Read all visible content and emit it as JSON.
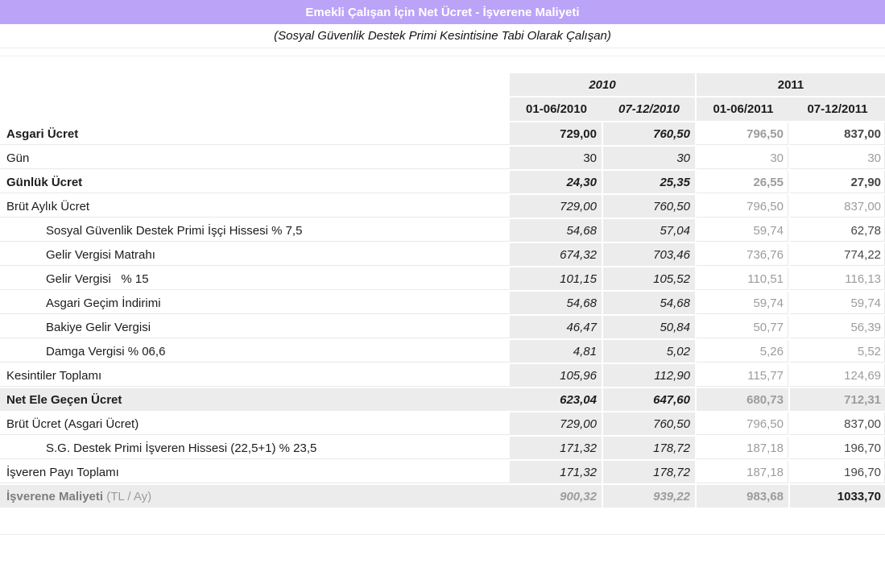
{
  "header": {
    "title": "Emekli Çalışan İçin Net Ücret - İşverene Maliyeti",
    "subtitle": "(Sosyal Güvenlik Destek Primi Kesintisine Tabi Olarak Çalışan)",
    "title_bg_color": "#bba3f8",
    "title_text_color": "#ffffff"
  },
  "table": {
    "year_groups": [
      {
        "label": "2010"
      },
      {
        "label": "2011"
      }
    ],
    "periods": [
      {
        "label": "01-06/2010"
      },
      {
        "label": "07-12/2010"
      },
      {
        "label": "01-06/2011"
      },
      {
        "label": "07-12/2011"
      }
    ],
    "rows": [
      {
        "label": "Asgari Ücret",
        "label_bold": true,
        "values": [
          {
            "text": "729,00",
            "bold": true,
            "tone": "black"
          },
          {
            "text": "760,50",
            "bold": true,
            "italic": true,
            "tone": "black"
          },
          {
            "text": "796,50",
            "bold": true,
            "tone": "gray"
          },
          {
            "text": "837,00",
            "bold": true,
            "tone": "dark"
          }
        ]
      },
      {
        "label": "Gün",
        "values": [
          {
            "text": "30",
            "tone": "black"
          },
          {
            "text": "30",
            "italic": true,
            "tone": "black"
          },
          {
            "text": "30",
            "tone": "gray"
          },
          {
            "text": "30",
            "tone": "gray"
          }
        ]
      },
      {
        "label": "Günlük Ücret",
        "label_bold": true,
        "values": [
          {
            "text": "24,30",
            "bold": true,
            "italic": true,
            "tone": "black"
          },
          {
            "text": "25,35",
            "bold": true,
            "italic": true,
            "tone": "black"
          },
          {
            "text": "26,55",
            "bold": true,
            "tone": "gray"
          },
          {
            "text": "27,90",
            "bold": true,
            "tone": "dark"
          }
        ]
      },
      {
        "label": "Brüt Aylık Ücret",
        "values": [
          {
            "text": "729,00",
            "italic": true,
            "tone": "black"
          },
          {
            "text": "760,50",
            "italic": true,
            "tone": "black"
          },
          {
            "text": "796,50",
            "tone": "gray"
          },
          {
            "text": "837,00",
            "tone": "gray"
          }
        ]
      },
      {
        "label": "Sosyal Güvenlik Destek Primi İşçi Hissesi % 7,5",
        "indent": true,
        "values": [
          {
            "text": "54,68",
            "italic": true,
            "tone": "black"
          },
          {
            "text": "57,04",
            "italic": true,
            "tone": "black"
          },
          {
            "text": "59,74",
            "tone": "gray"
          },
          {
            "text": "62,78",
            "tone": "dark"
          }
        ]
      },
      {
        "label": "Gelir Vergisi Matrahı",
        "indent": true,
        "values": [
          {
            "text": "674,32",
            "italic": true,
            "tone": "black"
          },
          {
            "text": "703,46",
            "italic": true,
            "tone": "black"
          },
          {
            "text": "736,76",
            "tone": "gray"
          },
          {
            "text": "774,22",
            "tone": "dark"
          }
        ]
      },
      {
        "label": "Gelir Vergisi   % 15",
        "indent": true,
        "values": [
          {
            "text": "101,15",
            "italic": true,
            "tone": "black"
          },
          {
            "text": "105,52",
            "italic": true,
            "tone": "black"
          },
          {
            "text": "110,51",
            "tone": "gray"
          },
          {
            "text": "116,13",
            "tone": "gray"
          }
        ]
      },
      {
        "label": "Asgari Geçim İndirimi",
        "indent": true,
        "values": [
          {
            "text": "54,68",
            "italic": true,
            "tone": "black"
          },
          {
            "text": "54,68",
            "italic": true,
            "tone": "black"
          },
          {
            "text": "59,74",
            "tone": "gray"
          },
          {
            "text": "59,74",
            "tone": "gray"
          }
        ]
      },
      {
        "label": "Bakiye Gelir Vergisi",
        "indent": true,
        "values": [
          {
            "text": "46,47",
            "italic": true,
            "tone": "black"
          },
          {
            "text": "50,84",
            "italic": true,
            "tone": "black"
          },
          {
            "text": "50,77",
            "tone": "gray"
          },
          {
            "text": "56,39",
            "tone": "gray"
          }
        ]
      },
      {
        "label": "Damga Vergisi % 06,6",
        "indent": true,
        "values": [
          {
            "text": "4,81",
            "italic": true,
            "tone": "black"
          },
          {
            "text": "5,02",
            "italic": true,
            "tone": "black"
          },
          {
            "text": "5,26",
            "tone": "gray"
          },
          {
            "text": "5,52",
            "tone": "gray"
          }
        ]
      },
      {
        "label": "Kesintiler Toplamı",
        "values": [
          {
            "text": "105,96",
            "italic": true,
            "tone": "black"
          },
          {
            "text": "112,90",
            "italic": true,
            "tone": "black"
          },
          {
            "text": "115,77",
            "tone": "gray"
          },
          {
            "text": "124,69",
            "tone": "gray"
          }
        ]
      },
      {
        "label": "Net Ele Geçen Ücret",
        "label_bold": true,
        "total": true,
        "values": [
          {
            "text": "623,04",
            "bold": true,
            "italic": true,
            "tone": "black"
          },
          {
            "text": "647,60",
            "bold": true,
            "italic": true,
            "tone": "black"
          },
          {
            "text": "680,73",
            "bold": true,
            "tone": "gray"
          },
          {
            "text": "712,31",
            "bold": true,
            "tone": "gray"
          }
        ]
      },
      {
        "label": "Brüt Ücret (Asgari Ücret)",
        "values": [
          {
            "text": "729,00",
            "italic": true,
            "tone": "black"
          },
          {
            "text": "760,50",
            "italic": true,
            "tone": "black"
          },
          {
            "text": "796,50",
            "tone": "gray"
          },
          {
            "text": "837,00",
            "tone": "dark"
          }
        ]
      },
      {
        "label": "S.G. Destek Primi İşveren Hissesi (22,5+1) % 23,5",
        "indent": true,
        "values": [
          {
            "text": "171,32",
            "italic": true,
            "tone": "black"
          },
          {
            "text": "178,72",
            "italic": true,
            "tone": "black"
          },
          {
            "text": "187,18",
            "tone": "gray"
          },
          {
            "text": "196,70",
            "tone": "dark"
          }
        ]
      },
      {
        "label": "İşveren Payı Toplamı",
        "values": [
          {
            "text": "171,32",
            "italic": true,
            "tone": "black"
          },
          {
            "text": "178,72",
            "italic": true,
            "tone": "black"
          },
          {
            "text": "187,18",
            "tone": "gray"
          },
          {
            "text": "196,70",
            "tone": "dark"
          }
        ]
      },
      {
        "label": "İşverene Maliyeti",
        "suffix": " (TL / Ay)",
        "label_bold": true,
        "label_gray": true,
        "total": true,
        "values": [
          {
            "text": "900,32",
            "bold": true,
            "italic": true,
            "tone": "gray"
          },
          {
            "text": "939,22",
            "bold": true,
            "italic": true,
            "tone": "gray"
          },
          {
            "text": "983,68",
            "bold": true,
            "tone": "gray"
          },
          {
            "text": "1033,70",
            "bold": true,
            "tone": "black"
          }
        ]
      }
    ],
    "colors": {
      "group_bg_gray": "#ececec",
      "value_black": "#1c1c1c",
      "value_gray": "#9c9c9c",
      "value_dark": "#474747"
    }
  }
}
